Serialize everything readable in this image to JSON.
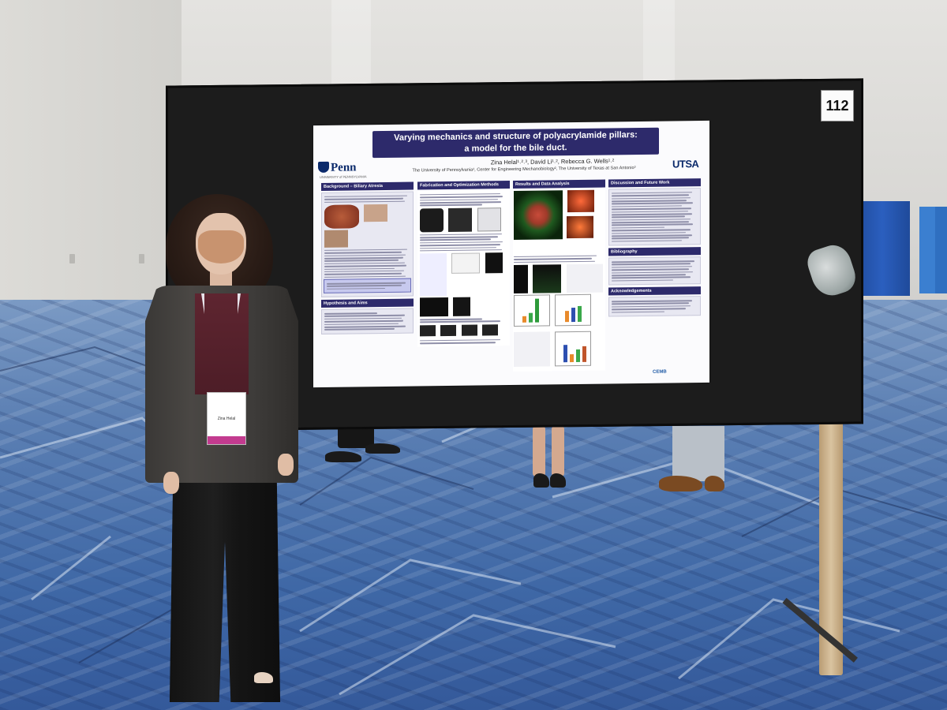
{
  "scene": {
    "booth_number": "112"
  },
  "poster": {
    "title_line1": "Varying mechanics and structure of polyacrylamide pillars:",
    "title_line2": "a model for the bile duct.",
    "authors": "Zina Helal¹˒²˒³, David Li¹˒², Rebecca G. Wells¹˒²",
    "affiliations": "The University of Pennsylvania¹, Center for Engineering Mechanobiology², The University of Texas at San Antonio³",
    "logo_left": "Penn",
    "logo_left_sub": "UNIVERSITY of PENNSYLVANIA",
    "logo_right": "UTSA",
    "footer_logo": "CEMB",
    "sections": {
      "background": "Background – Biliary Atresia",
      "hypothesis": "Hypothesis and Aims",
      "fabrication": "Fabrication and Optimization Methods",
      "results": "Results and Data Analysis",
      "discussion": "Discussion and Future Work",
      "bibliography": "Bibliography",
      "acknowledgements": "Acknowledgements"
    }
  },
  "badge": {
    "name": "Zina Helal"
  },
  "colors": {
    "poster_header": "#2d2a6b",
    "carpet": "#3f68a6",
    "board": "#1c1c1c"
  }
}
